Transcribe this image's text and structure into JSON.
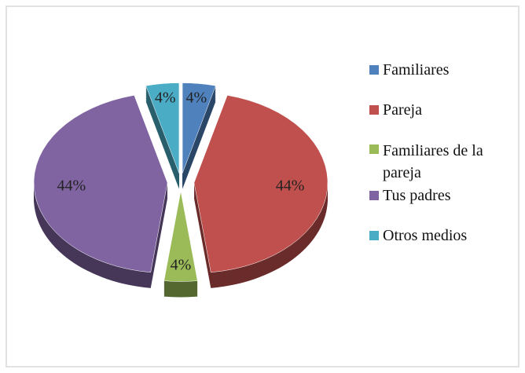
{
  "chart_data": {
    "type": "pie",
    "categories": [
      "Familiares",
      "Pareja",
      "Familiares de la pareja",
      "Tus padres",
      "Otros medios"
    ],
    "values": [
      4,
      44,
      4,
      44,
      4
    ],
    "value_labels": [
      "4%",
      "44%",
      "4%",
      "44%",
      "4%"
    ],
    "colors": [
      "#4f81bd",
      "#c0504d",
      "#9bbb59",
      "#8064a2",
      "#4bacc6"
    ],
    "legend": "right"
  }
}
